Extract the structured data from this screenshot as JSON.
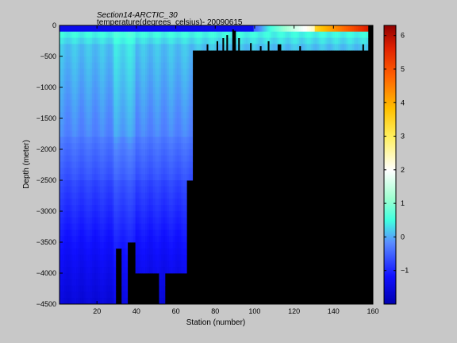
{
  "chart_data": {
    "type": "heatmap",
    "title": "Section14-ARCTIC_30",
    "subtitle": "temperature(degrees_celsius)- 20090615",
    "xlabel": "Station (number)",
    "ylabel": "Depth (meter)",
    "xlim": [
      1,
      160
    ],
    "ylim": [
      -4500,
      0
    ],
    "x_ticks": [
      20,
      40,
      60,
      80,
      100,
      120,
      140,
      160
    ],
    "y_ticks": [
      0,
      -500,
      -1000,
      -1500,
      -2000,
      -2500,
      -3000,
      -3500,
      -4000,
      -4500
    ],
    "colorbar": {
      "range": [
        -2,
        6.3
      ],
      "ticks": [
        -1,
        0,
        1,
        2,
        3,
        4,
        5,
        6
      ],
      "colormap": "jet"
    },
    "colors": {
      "background": "#c8c8c8",
      "no_data": "#000000"
    }
  }
}
